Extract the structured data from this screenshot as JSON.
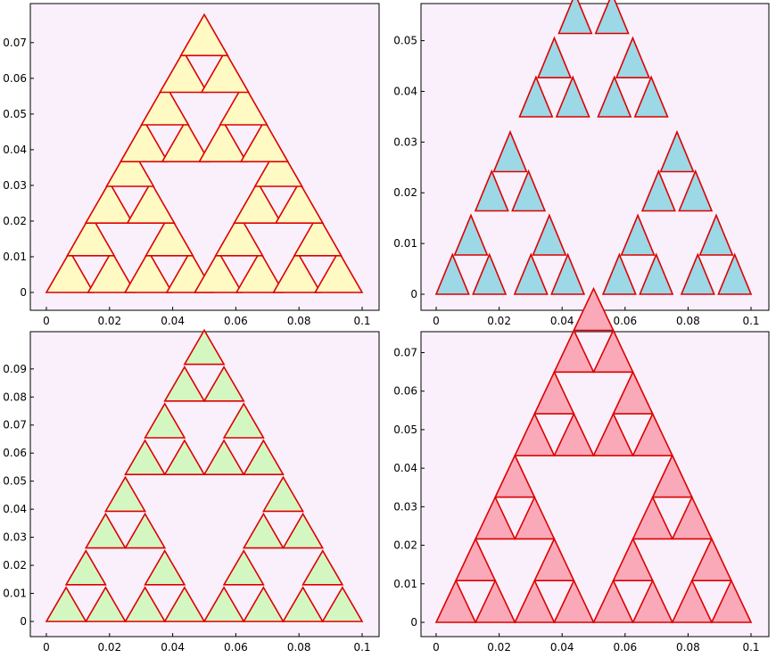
{
  "chart_data": [
    {
      "type": "area",
      "title": "",
      "xlabel": "",
      "ylabel": "",
      "xlim": [
        0,
        0.1
      ],
      "ylim": [
        0,
        0.0772
      ],
      "xticks": [
        "0",
        "0.02",
        "0.04",
        "0.06",
        "0.08",
        "0.1"
      ],
      "yticks": [
        "0",
        "0.01",
        "0.02",
        "0.03",
        "0.04",
        "0.05",
        "0.06",
        "0.07"
      ],
      "fill": "#fff9c4",
      "stroke": "#dd0000",
      "rule": "rotated",
      "triangles": []
    },
    {
      "type": "area",
      "title": "",
      "xlabel": "",
      "ylabel": "",
      "xlim": [
        0,
        0.1
      ],
      "ylim": [
        0,
        0.0545
      ],
      "xticks": [
        "0",
        "0.02",
        "0.04",
        "0.06",
        "0.08",
        "0.1"
      ],
      "yticks": [
        "0",
        "0.01",
        "0.02",
        "0.03",
        "0.04",
        "0.05"
      ],
      "fill": "#9cd8e6",
      "stroke": "#dd0000",
      "rule": "overlap",
      "triangles": []
    },
    {
      "type": "area",
      "title": "",
      "xlabel": "",
      "ylabel": "",
      "xlim": [
        0,
        0.1
      ],
      "ylim": [
        0,
        0.0982
      ],
      "xticks": [
        "0",
        "0.02",
        "0.04",
        "0.06",
        "0.08",
        "0.1"
      ],
      "yticks": [
        "0",
        "0.01",
        "0.02",
        "0.03",
        "0.04",
        "0.05",
        "0.06",
        "0.07",
        "0.08",
        "0.09"
      ],
      "fill": "#d4f7c2",
      "stroke": "#dd0000",
      "rule": "tall",
      "triangles": []
    },
    {
      "type": "area",
      "title": "",
      "xlabel": "",
      "ylabel": "",
      "xlim": [
        0,
        0.1
      ],
      "ylim": [
        0,
        0.0715
      ],
      "xticks": [
        "0",
        "0.02",
        "0.04",
        "0.06",
        "0.08",
        "0.1"
      ],
      "yticks": [
        "0",
        "0.01",
        "0.02",
        "0.03",
        "0.04",
        "0.05",
        "0.06",
        "0.07"
      ],
      "fill": "#f9a9b8",
      "stroke": "#dd0000",
      "rule": "sierpinski",
      "triangles": []
    }
  ]
}
